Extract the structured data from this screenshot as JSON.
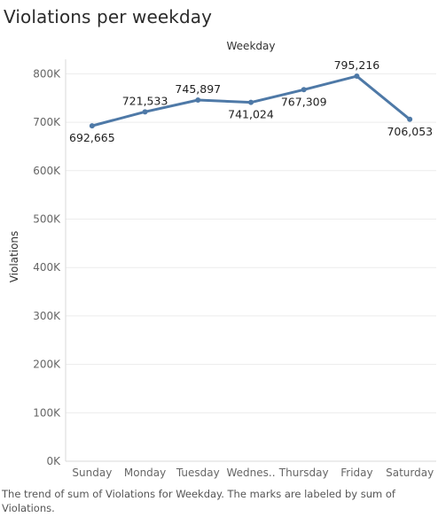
{
  "title": "Violations per weekday",
  "caption": "The trend of sum of Violations for Weekday.  The marks are labeled by sum of Violations.",
  "chart_data": {
    "type": "line",
    "title": "Violations per weekday",
    "top_axis_title": "Weekday",
    "ylabel": "Violations",
    "categories": [
      "Sunday",
      "Monday",
      "Tuesday",
      "Wednes..",
      "Thursday",
      "Friday",
      "Saturday"
    ],
    "values": [
      692665,
      721533,
      745897,
      741024,
      767309,
      795216,
      706053
    ],
    "value_labels": [
      "692,665",
      "721,533",
      "745,897",
      "741,024",
      "767,309",
      "795,216",
      "706,053"
    ],
    "y_ticks": [
      0,
      100000,
      200000,
      300000,
      400000,
      500000,
      600000,
      700000,
      800000
    ],
    "y_tick_labels": [
      "0K",
      "100K",
      "200K",
      "300K",
      "400K",
      "500K",
      "600K",
      "700K",
      "800K"
    ],
    "ylim": [
      0,
      830000
    ],
    "grid": true,
    "line_color": "#4e79a7"
  }
}
